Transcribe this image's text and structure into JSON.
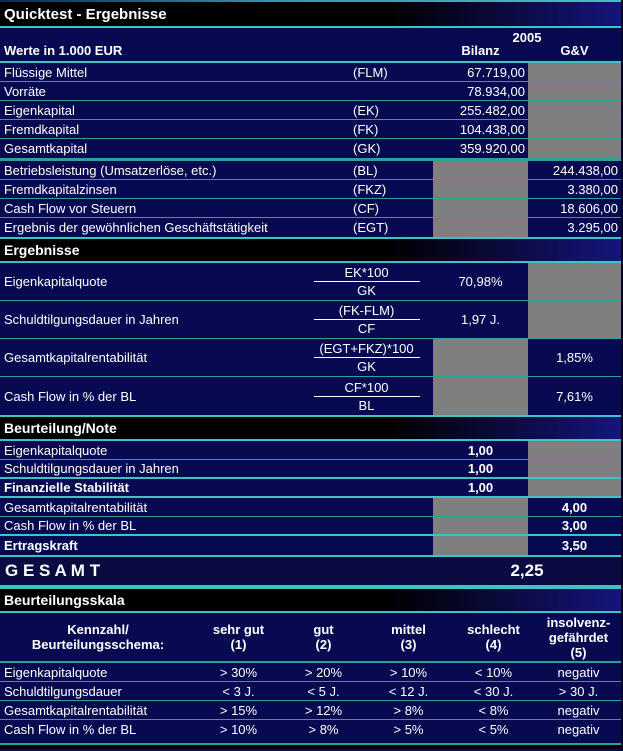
{
  "colors": {
    "background_navy": "#070A50",
    "grid_line_teal": "#2FA096",
    "bright_line_cyan": "#3CC4C4",
    "empty_cell_gray": "#7F7F7F",
    "section_band_black": "#000000",
    "text": "#FFFFFF"
  },
  "title": "Quicktest - Ergebnisse",
  "header": {
    "year": "2005",
    "values_label": "Werte in 1.000 EUR",
    "col_bilanz": "Bilanz",
    "col_gv": "G&V"
  },
  "inputs": {
    "rows": [
      {
        "label": "Flüssige Mittel",
        "code": "(FLM)",
        "bilanz": "67.719,00",
        "gv": ""
      },
      {
        "label": "Vorräte",
        "code": "",
        "bilanz": "78.934,00",
        "gv": ""
      },
      {
        "label": "Eigenkapital",
        "code": "(EK)",
        "bilanz": "255.482,00",
        "gv": ""
      },
      {
        "label": "Fremdkapital",
        "code": "(FK)",
        "bilanz": "104.438,00",
        "gv": ""
      },
      {
        "label": "Gesamtkapital",
        "code": "(GK)",
        "bilanz": "359.920,00",
        "gv": ""
      },
      {
        "label": "Betriebsleistung (Umsatzerlöse, etc.)",
        "code": "(BL)",
        "bilanz": "",
        "gv": "244.438,00"
      },
      {
        "label": "Fremdkapitalzinsen",
        "code": "(FKZ)",
        "bilanz": "",
        "gv": "3.380,00"
      },
      {
        "label": "Cash Flow vor Steuern",
        "code": "(CF)",
        "bilanz": "",
        "gv": "18.606,00"
      },
      {
        "label": "Ergebnis der gewöhnlichen Geschäftstätigkeit",
        "code": "(EGT)",
        "bilanz": "",
        "gv": "3.295,00"
      }
    ]
  },
  "results": {
    "section_title": "Ergebnisse",
    "rows": [
      {
        "label": "Eigenkapitalquote",
        "numerator": "EK*100",
        "denominator": "GK",
        "bilanz": "70,98%",
        "gv": ""
      },
      {
        "label": "Schuldtilgungsdauer in Jahren",
        "numerator": "(FK-FLM)",
        "denominator": "CF",
        "bilanz": "1,97 J.",
        "gv": ""
      },
      {
        "label": "Gesamtkapitalrentabilität",
        "numerator": "(EGT+FKZ)*100",
        "denominator": "GK",
        "bilanz": "",
        "gv": "1,85%"
      },
      {
        "label": "Cash Flow in % der BL",
        "numerator": "CF*100",
        "denominator": "BL",
        "bilanz": "",
        "gv": "7,61%"
      }
    ]
  },
  "ratings": {
    "section_title": "Beurteilung/Note",
    "rows": [
      {
        "label": "Eigenkapitalquote",
        "bilanz": "1,00",
        "gv": ""
      },
      {
        "label": "Schuldtilgungsdauer in Jahren",
        "bilanz": "1,00",
        "gv": ""
      },
      {
        "label": "Finanzielle Stabilität",
        "bilanz": "1,00",
        "gv": ""
      },
      {
        "label": "Gesamtkapitalrentabilität",
        "bilanz": "",
        "gv": "4,00"
      },
      {
        "label": "Cash Flow in % der BL",
        "bilanz": "",
        "gv": "3,00"
      },
      {
        "label": "Ertragskraft",
        "bilanz": "",
        "gv": "3,50"
      }
    ]
  },
  "total": {
    "label": "G E S A M T",
    "value": "2,25"
  },
  "scale": {
    "section_title": "Beurteilungsskala",
    "header_label": [
      "Kennzahl/",
      "Beurteilungsschema:"
    ],
    "columns": [
      {
        "lines": [
          "sehr gut",
          "(1)"
        ]
      },
      {
        "lines": [
          "gut",
          "(2)"
        ]
      },
      {
        "lines": [
          "mittel",
          "(3)"
        ]
      },
      {
        "lines": [
          "schlecht",
          "(4)"
        ]
      },
      {
        "lines": [
          "insolvenz-",
          "gefährdet",
          "(5)"
        ]
      }
    ],
    "rows": [
      {
        "label": "Eigenkapitalquote",
        "values": [
          "> 30%",
          "> 20%",
          "> 10%",
          "< 10%",
          "negativ"
        ]
      },
      {
        "label": "Schuldtilgungsdauer",
        "values": [
          "< 3 J.",
          "< 5 J.",
          "< 12 J.",
          "< 30 J.",
          "> 30 J."
        ]
      },
      {
        "label": "Gesamtkapitalrentabilität",
        "values": [
          "> 15%",
          "> 12%",
          "> 8%",
          "< 8%",
          "negativ"
        ]
      },
      {
        "label": "Cash Flow in % der BL",
        "values": [
          "> 10%",
          "> 8%",
          "> 5%",
          "< 5%",
          "negativ"
        ]
      }
    ]
  }
}
